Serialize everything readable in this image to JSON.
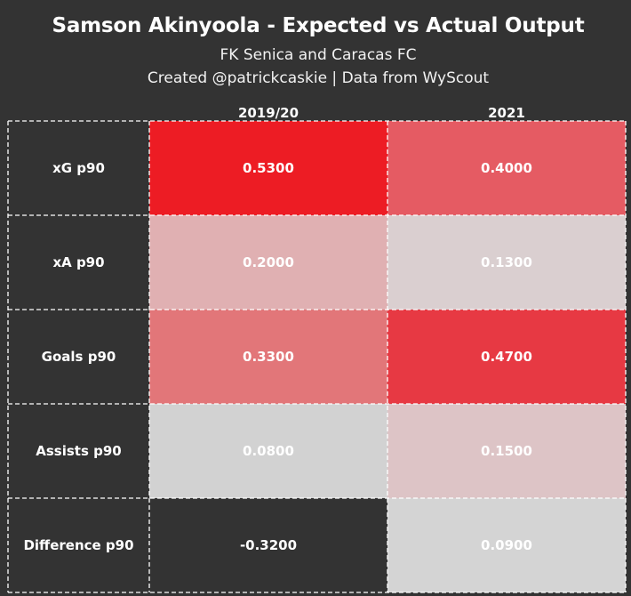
{
  "header": {
    "title": "Samson Akinyoola - Expected vs Actual Output",
    "subtitle": "FK Senica and Caracas FC",
    "credit": "Created @patrickcaskie | Data from WyScout"
  },
  "chart_data": {
    "type": "heatmap",
    "title": "Samson Akinyoola - Expected vs Actual Output",
    "columns": [
      "2019/20",
      "2021"
    ],
    "rows": [
      "xG p90",
      "xA p90",
      "Goals p90",
      "Assists p90",
      "Difference p90"
    ],
    "values": [
      [
        "0.5300",
        "0.4000"
      ],
      [
        "0.2000",
        "0.1300"
      ],
      [
        "0.3300",
        "0.4700"
      ],
      [
        "0.0800",
        "0.1500"
      ],
      [
        "-0.3200",
        "0.0900"
      ]
    ],
    "cell_colors": [
      [
        "#ed1c24",
        "#e55b63"
      ],
      [
        "#e0b0b2",
        "#dacfd0"
      ],
      [
        "#e27679",
        "#e73943"
      ],
      [
        "#d2d2d2",
        "#ddc4c6"
      ],
      [
        "#333333",
        "#d4d4d4"
      ]
    ],
    "colors": {
      "background": "#333333",
      "row_label_bg": "#333333",
      "grid_line": "#ffffff"
    }
  }
}
